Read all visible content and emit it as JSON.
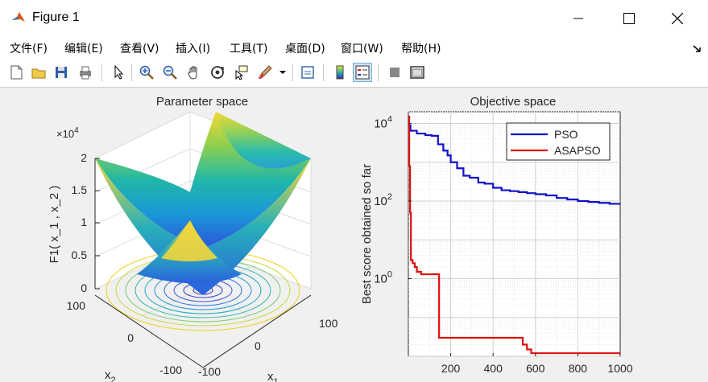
{
  "window": {
    "title": "Figure 1",
    "controls": [
      "minimize",
      "maximize",
      "close"
    ]
  },
  "menu": {
    "items": [
      {
        "label": "文件(F)"
      },
      {
        "label": "编辑(E)"
      },
      {
        "label": "查看(V)"
      },
      {
        "label": "插入(I)"
      },
      {
        "label": "工具(T)"
      },
      {
        "label": "桌面(D)"
      },
      {
        "label": "窗口(W)"
      },
      {
        "label": "帮助(H)"
      }
    ]
  },
  "toolbar": {
    "buttons": [
      "new-figure-icon",
      "open-icon",
      "save-icon",
      "print-icon",
      "pointer-icon",
      "zoom-in-icon",
      "zoom-out-icon",
      "pan-icon",
      "rotate-3d-icon",
      "data-cursor-icon",
      "brush-icon",
      "link-plot-icon",
      "colorbar-icon",
      "legend-icon",
      "hide-tools-icon",
      "dock-icon"
    ]
  },
  "left_plot": {
    "title": "Parameter space",
    "zlabel": "F1( x_1 , x_2 )",
    "z_multiplier": "×10",
    "z_exponent": "4",
    "z_ticks": [
      "0",
      "0.5",
      "1",
      "1.5",
      "2"
    ],
    "x1_label": "x",
    "x1_sub": "1",
    "x2_label": "x",
    "x2_sub": "2",
    "x1_ticks": [
      "-100",
      "0",
      "100"
    ],
    "x2_ticks": [
      "100",
      "0",
      "-100"
    ]
  },
  "chart_data": {
    "type": "line",
    "title": "Objective space",
    "xlabel": "",
    "ylabel": "Best score obtained so far",
    "yscale": "log",
    "xlim": [
      0,
      1000
    ],
    "ylim": [
      0.01,
      20000
    ],
    "x_ticks": [
      "200",
      "400",
      "600",
      "800",
      "1000"
    ],
    "y_ticks": [
      {
        "base": "10",
        "exp": "0"
      },
      {
        "base": "10",
        "exp": "2"
      },
      {
        "base": "10",
        "exp": "4"
      }
    ],
    "grid": true,
    "legend_position": "top-right",
    "series": [
      {
        "name": "PSO",
        "color": "#1010c8",
        "x": [
          1,
          10,
          40,
          80,
          110,
          140,
          165,
          185,
          200,
          230,
          260,
          290,
          330,
          360,
          400,
          440,
          480,
          520,
          560,
          600,
          650,
          700,
          750,
          800,
          850,
          900,
          950,
          1000
        ],
        "y": [
          9000,
          6500,
          5500,
          5000,
          4800,
          2900,
          2000,
          1500,
          1000,
          700,
          450,
          400,
          300,
          280,
          220,
          190,
          180,
          170,
          160,
          150,
          140,
          120,
          110,
          100,
          95,
          90,
          85,
          80
        ]
      },
      {
        "name": "ASAPSO",
        "color": "#e01010",
        "x": [
          1,
          4,
          8,
          12,
          20,
          30,
          40,
          60,
          80,
          100,
          120,
          140,
          145,
          200,
          300,
          400,
          500,
          540,
          560,
          580,
          600,
          700,
          800,
          900,
          1000
        ],
        "y": [
          15000,
          800,
          50,
          3,
          2.5,
          2,
          1.5,
          1.3,
          1.3,
          1.3,
          1.3,
          1.3,
          0.03,
          0.03,
          0.03,
          0.03,
          0.03,
          0.02,
          0.015,
          0.012,
          0.012,
          0.012,
          0.012,
          0.012,
          0.012
        ]
      }
    ]
  }
}
